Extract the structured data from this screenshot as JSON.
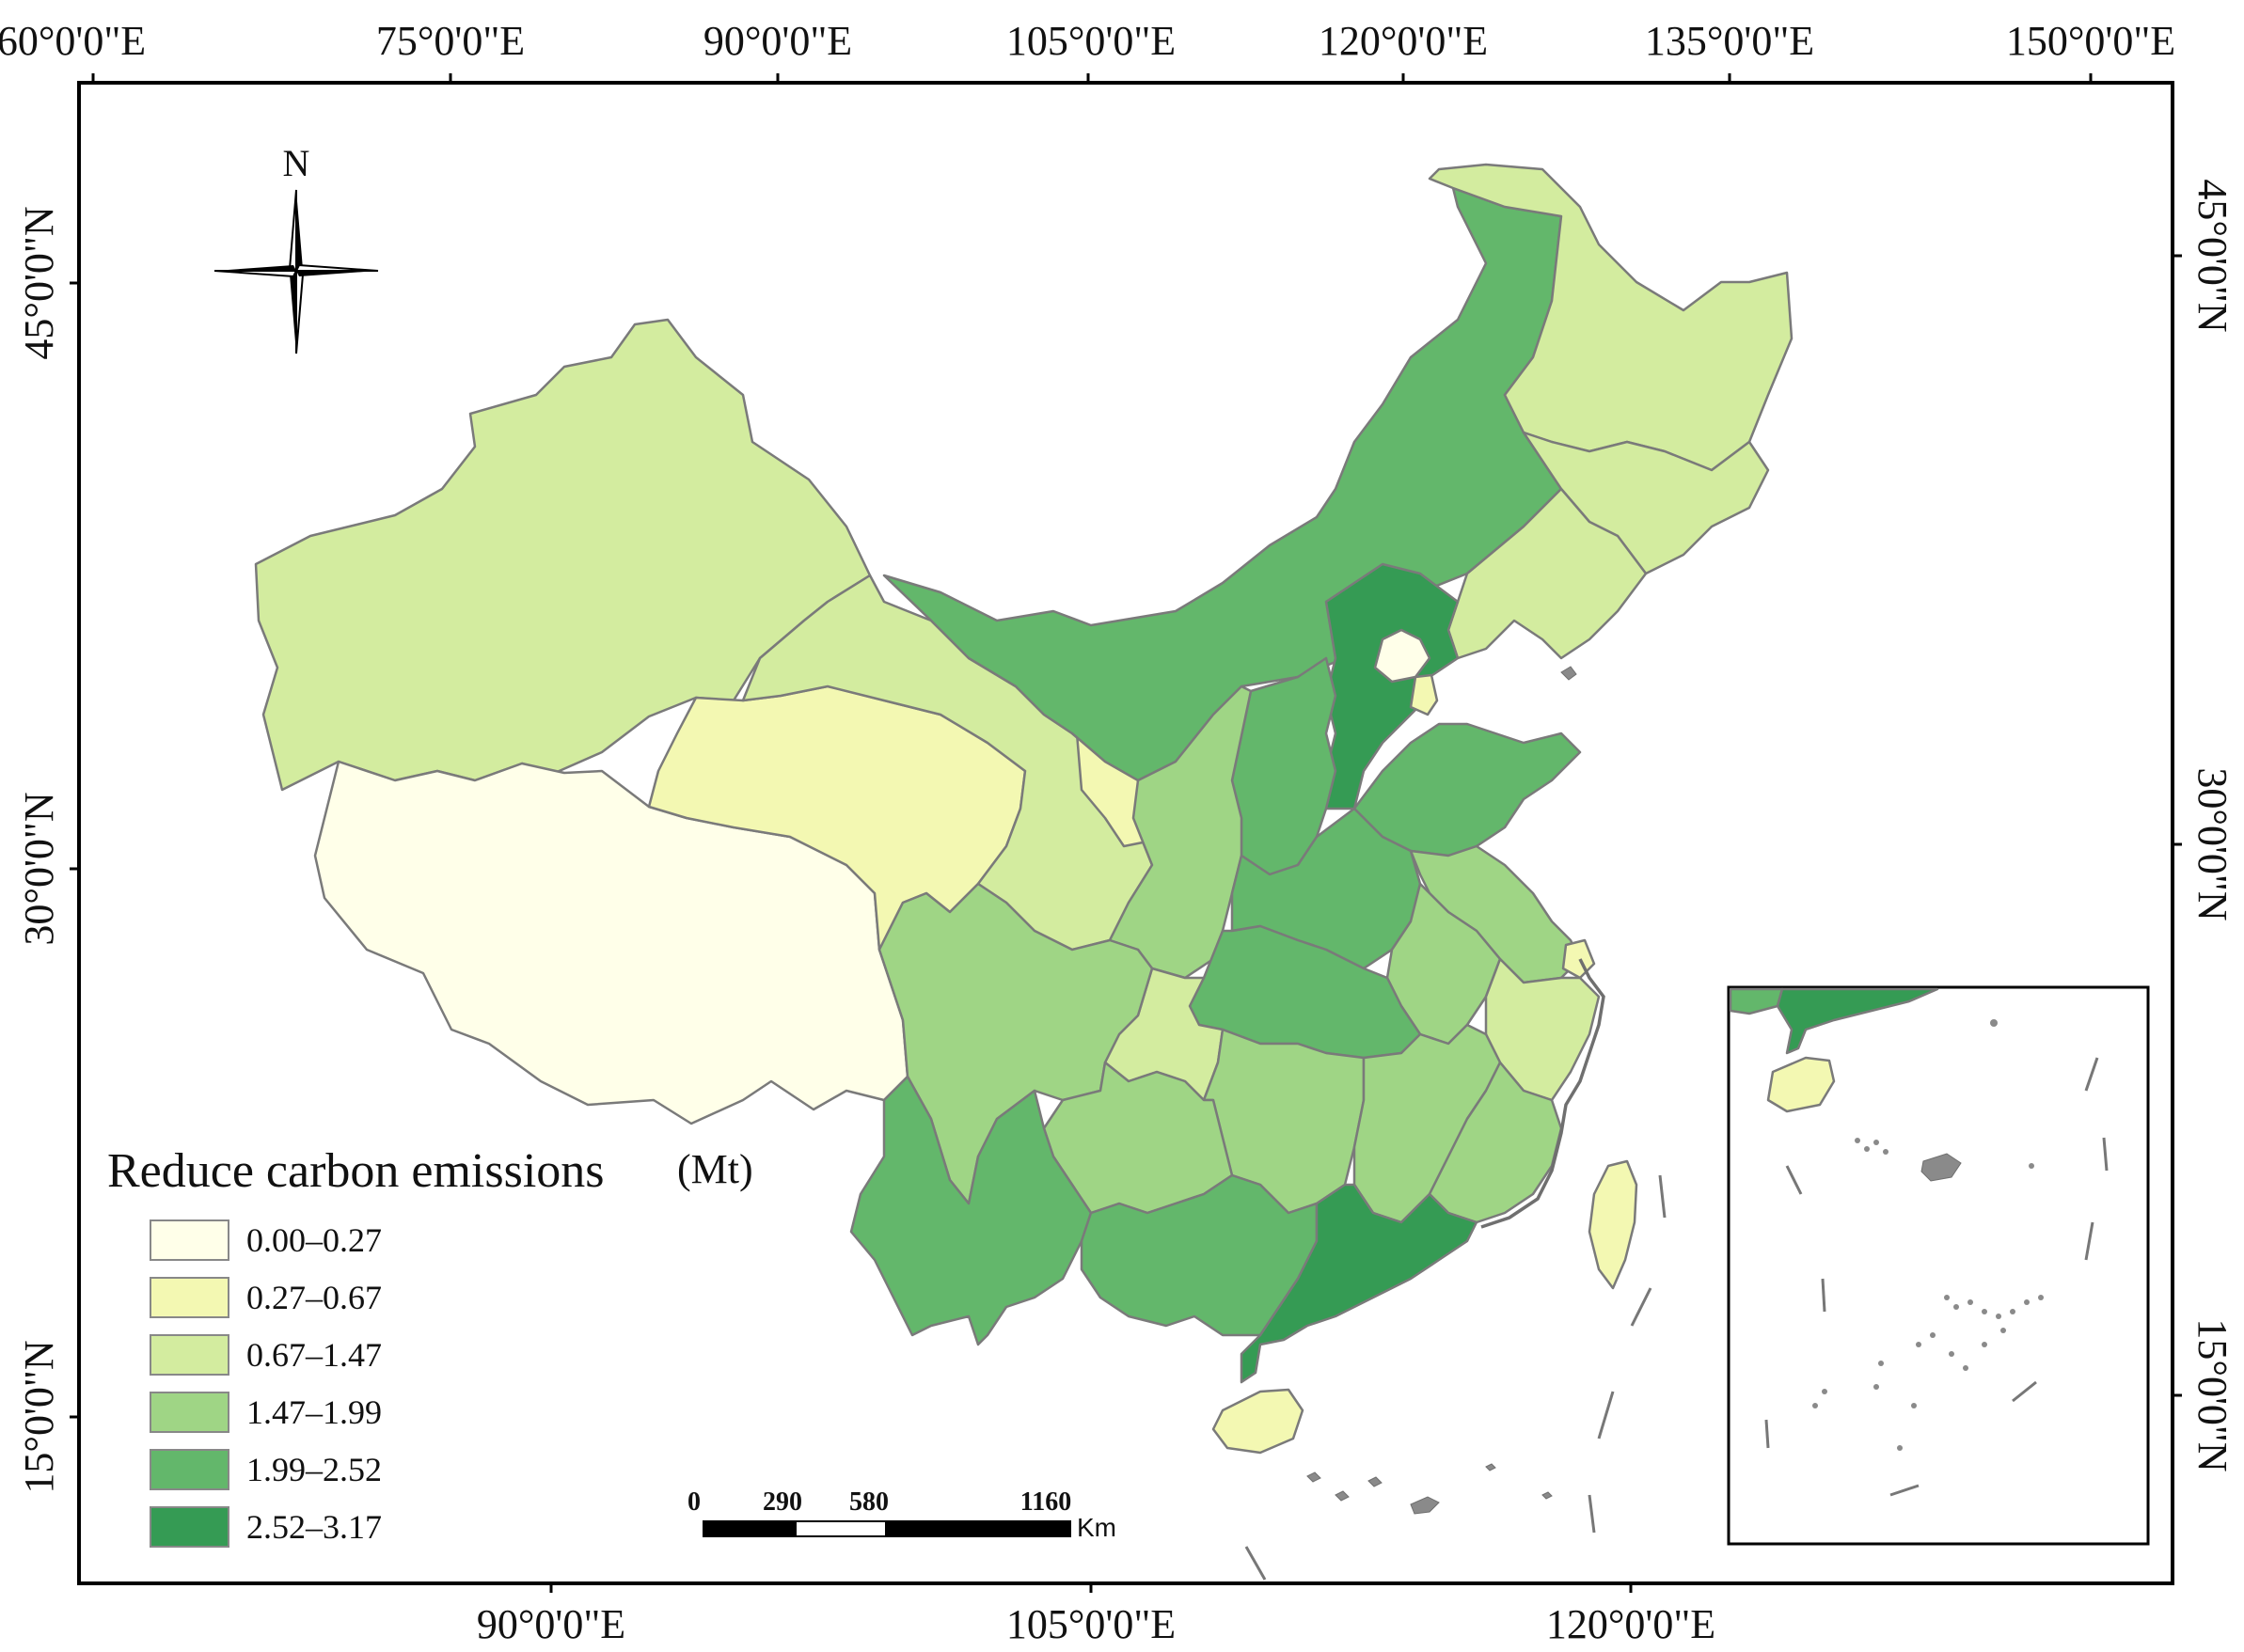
{
  "axes": {
    "top_lon_labels": [
      "60°0'0\"E",
      "75°0'0\"E",
      "90°0'0\"E",
      "105°0'0\"E",
      "120°0'0\"E",
      "135°0'0\"E",
      "150°0'0\"E"
    ],
    "bottom_lon_labels": [
      "90°0'0\"E",
      "105°0'0\"E",
      "120°0'0\"E"
    ],
    "left_lat_labels": [
      "45°0'0\"N",
      "30°0'0\"N",
      "15°0'0\"N"
    ],
    "right_lat_labels": [
      "45°0'0\"N",
      "30°0'0\"N",
      "15°0'0\"N"
    ]
  },
  "north_arrow": {
    "label": "N",
    "icon": "compass-rose-icon"
  },
  "legend": {
    "title": "Reduce carbon emissions",
    "unit": "(Mt)",
    "classes": [
      {
        "label": "0.00–0.27",
        "color": "#ffffe9"
      },
      {
        "label": "0.27–0.67",
        "color": "#f3f8b2"
      },
      {
        "label": "0.67–1.47",
        "color": "#d3ec9f"
      },
      {
        "label": "1.47–1.99",
        "color": "#9fd585"
      },
      {
        "label": "1.99–2.52",
        "color": "#63b76b"
      },
      {
        "label": "2.52–3.17",
        "color": "#359b54"
      }
    ]
  },
  "scale_bar": {
    "labels": [
      "0",
      "290",
      "580",
      "1160"
    ],
    "unit": "Km"
  },
  "regions": [
    {
      "name": "Xinjiang",
      "class": 2
    },
    {
      "name": "Tibet",
      "class": 0
    },
    {
      "name": "Qinghai",
      "class": 1
    },
    {
      "name": "Gansu",
      "class": 2
    },
    {
      "name": "Ningxia",
      "class": 1
    },
    {
      "name": "Inner Mongolia",
      "class": 4
    },
    {
      "name": "Heilongjiang",
      "class": 2
    },
    {
      "name": "Jilin",
      "class": 2
    },
    {
      "name": "Liaoning",
      "class": 2
    },
    {
      "name": "Hebei",
      "class": 5
    },
    {
      "name": "Beijing",
      "class": 0
    },
    {
      "name": "Tianjin",
      "class": 1
    },
    {
      "name": "Shanxi",
      "class": 4
    },
    {
      "name": "Shandong",
      "class": 4
    },
    {
      "name": "Shaanxi",
      "class": 3
    },
    {
      "name": "Henan",
      "class": 4
    },
    {
      "name": "Jiangsu",
      "class": 3
    },
    {
      "name": "Anhui",
      "class": 3
    },
    {
      "name": "Shanghai",
      "class": 1
    },
    {
      "name": "Zhejiang",
      "class": 2
    },
    {
      "name": "Hubei",
      "class": 4
    },
    {
      "name": "Chongqing",
      "class": 2
    },
    {
      "name": "Sichuan",
      "class": 3
    },
    {
      "name": "Hunan",
      "class": 3
    },
    {
      "name": "Jiangxi",
      "class": 3
    },
    {
      "name": "Fujian",
      "class": 3
    },
    {
      "name": "Guizhou",
      "class": 3
    },
    {
      "name": "Yunnan",
      "class": 4
    },
    {
      "name": "Guangxi",
      "class": 4
    },
    {
      "name": "Guangdong",
      "class": 5
    },
    {
      "name": "Hainan",
      "class": 1
    },
    {
      "name": "Taiwan",
      "class": 1
    }
  ]
}
